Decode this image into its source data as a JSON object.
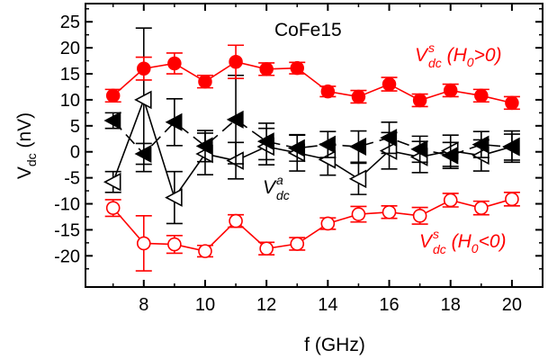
{
  "chart_data": {
    "type": "line",
    "title": "CoFe15",
    "xlabel": "f (GHz)",
    "ylabel": {
      "main": "V",
      "sub": "dc",
      "unit": " (nV)"
    },
    "xlim": [
      6.1,
      21.0
    ],
    "ylim": [
      -26,
      28.5
    ],
    "xticks": [
      8,
      10,
      12,
      14,
      16,
      18,
      20
    ],
    "yticks": [
      -20,
      -15,
      -10,
      -5,
      0,
      5,
      10,
      15,
      20,
      25
    ],
    "grid": false,
    "series": [
      {
        "key": "vs_pos",
        "marker": "circle-filled",
        "color": "#ff0000",
        "x": [
          7,
          8,
          9,
          10,
          11,
          12,
          13,
          14,
          15,
          16,
          17,
          18,
          19,
          20
        ],
        "y": [
          10.8,
          16.0,
          17.0,
          13.5,
          17.3,
          15.9,
          16.1,
          11.6,
          10.6,
          13.0,
          9.9,
          11.8,
          10.8,
          9.4
        ],
        "err": [
          1.2,
          2.2,
          2.0,
          1.2,
          3.2,
          1.2,
          1.1,
          1.0,
          1.2,
          1.3,
          1.2,
          1.2,
          1.2,
          1.2
        ]
      },
      {
        "key": "vs_neg",
        "marker": "circle-open",
        "color": "#ff0000",
        "x": [
          7,
          8,
          9,
          10,
          11,
          12,
          13,
          14,
          15,
          16,
          17,
          18,
          19,
          20
        ],
        "y": [
          -10.8,
          -17.6,
          -17.8,
          -19.1,
          -13.3,
          -18.6,
          -17.7,
          -13.8,
          -12.0,
          -11.6,
          -12.3,
          -9.3,
          -10.8,
          -9.1
        ],
        "err": [
          1.6,
          5.3,
          1.7,
          1.1,
          1.2,
          1.2,
          1.2,
          1.1,
          1.5,
          1.2,
          1.6,
          1.3,
          1.3,
          1.3
        ]
      },
      {
        "key": "va_filled",
        "marker": "triangle-left-filled",
        "color": "#000000",
        "x": [
          7,
          8,
          9,
          10,
          11,
          12,
          13,
          14,
          15,
          16,
          17,
          18,
          19,
          20
        ],
        "y": [
          6.0,
          -0.4,
          5.7,
          1.1,
          6.2,
          2.0,
          0.7,
          1.4,
          1.0,
          2.7,
          0.5,
          -0.7,
          1.4,
          0.9
        ],
        "err": [
          1.5,
          2.0,
          4.5,
          3.0,
          8.5,
          3.5,
          2.5,
          2.5,
          3.0,
          3.0,
          2.5,
          2.5,
          2.5,
          2.5
        ]
      },
      {
        "key": "va_open",
        "marker": "triangle-left-open",
        "color": "#000000",
        "x": [
          7,
          8,
          9,
          10,
          11,
          12,
          13,
          14,
          15,
          16,
          17,
          18,
          19,
          20
        ],
        "y": [
          -5.8,
          10.0,
          -8.8,
          -0.4,
          -1.7,
          1.0,
          -0.2,
          -1.5,
          -5.2,
          0.2,
          -1.0,
          0.2,
          -0.7,
          1.0
        ],
        "err": [
          2.0,
          13.8,
          5.0,
          4.0,
          3.5,
          3.5,
          3.5,
          3.0,
          3.0,
          3.5,
          3.0,
          3.0,
          3.0,
          3.0
        ]
      }
    ],
    "annotations": [
      {
        "key": "vs_pos_label",
        "base": "V",
        "sup": "s",
        "sub": "dc",
        "rest": " (H",
        "rest_sub": "0",
        "tail": ">0)",
        "color": "#ff0000"
      },
      {
        "key": "vs_neg_label",
        "base": "V",
        "sup": "s",
        "sub": "dc",
        "rest": " (H",
        "rest_sub": "0",
        "tail": "<0)",
        "color": "#ff0000"
      },
      {
        "key": "va_label",
        "base": "V",
        "sup": "a",
        "sub": "dc",
        "color": "#000000"
      }
    ]
  }
}
